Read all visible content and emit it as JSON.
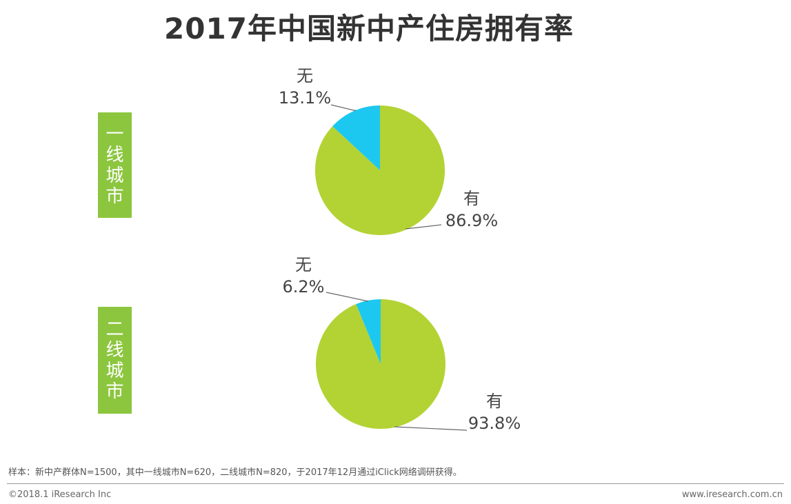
{
  "title": "2017年中国新中产住房拥有率",
  "footnote": "样本：新中产群体N=1500，其中一线城市N=620，二线城市N=820，于2017年12月通过iClick网络调研获得。",
  "copyright": "©2018.1 iResearch Inc",
  "website": "www.iresearch.com.cn",
  "colors": {
    "yes": "#b3d334",
    "no": "#1dc8f0",
    "label_bg": "#8cc63f"
  },
  "chart_data": [
    {
      "type": "pie",
      "group": "一线城市",
      "slices": [
        {
          "name": "有",
          "value": 86.9,
          "label": "86.9%"
        },
        {
          "name": "无",
          "value": 13.1,
          "label": "13.1%"
        }
      ]
    },
    {
      "type": "pie",
      "group": "二线城市",
      "slices": [
        {
          "name": "有",
          "value": 93.8,
          "label": "93.8%"
        },
        {
          "name": "无",
          "value": 6.2,
          "label": "6.2%"
        }
      ]
    }
  ]
}
